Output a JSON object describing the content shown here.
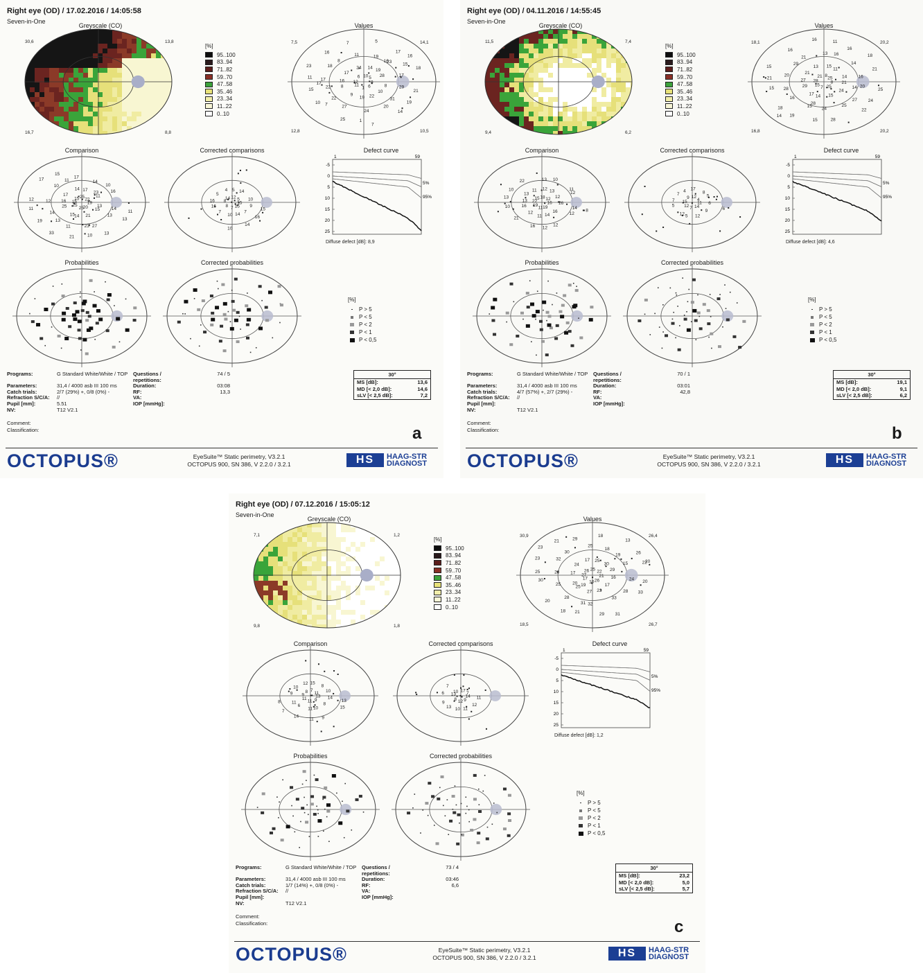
{
  "panels": [
    {
      "id": "a",
      "header": "Right eye (OD) / 17.02.2016 / 14:05:58",
      "mode": "Seven-in-One",
      "greyscale_label": "Greyscale (CO)",
      "greyscale_corners": [
        "30,6",
        "13,8",
        "16,7",
        "8,8"
      ],
      "values_label": "Values",
      "values_corners": [
        "7,5",
        "14,1",
        "12,8",
        "10,5"
      ],
      "values_points": [
        "8",
        "6",
        "1",
        "11",
        "12",
        "6",
        "10",
        "5",
        "8",
        "10",
        "22",
        "19",
        "9",
        "8",
        "16",
        "17",
        "24",
        "14",
        "19",
        "28",
        "29",
        "31",
        "20",
        "24",
        "27",
        "22",
        "22",
        "17",
        "18",
        "8",
        "11",
        "19",
        "23",
        "17",
        "21",
        "19",
        "14",
        "7",
        "1",
        "25",
        "10",
        "15",
        "11",
        "23",
        "16",
        "7",
        "5",
        "17",
        "16",
        "18",
        "7",
        "17",
        "15",
        "16"
      ],
      "comparison_label": "Comparison",
      "comparison_points": [
        "19",
        "20",
        "25",
        "25",
        "15",
        "15",
        "25",
        "22",
        "13",
        "15",
        "21",
        "14",
        "15",
        "25",
        "16",
        "17",
        "14",
        "17",
        "23",
        "11",
        "14",
        "13",
        "27",
        "23",
        "11",
        "13",
        "14",
        "12",
        "10",
        "11",
        "17",
        "14",
        "10",
        "16",
        "11",
        "13",
        "13",
        "10",
        "21",
        "33",
        "19",
        "11",
        "12",
        "17",
        "15"
      ],
      "corrected_comparisons_label": "Corrected comparisons",
      "corrected_comparisons_points": [
        "15",
        "15",
        "7",
        "8",
        "8",
        "14",
        "12",
        "5",
        "9",
        "7",
        "14",
        "10",
        "7",
        "16",
        "16",
        "5",
        "4",
        "5",
        "14",
        "10",
        "15",
        "16",
        "14",
        "10"
      ],
      "defect_curve_label": "Defect curve",
      "defect_curve_caption": "Diffuse defect [dB]: 8,9",
      "probabilities_label": "Probabilities",
      "corrected_probabilities_label": "Corrected probabilities",
      "params_left": [
        [
          "Programs:",
          "G Standard   White/White / TOP"
        ],
        [
          "Parameters:",
          "31,4  / 4000 asb III 100 ms"
        ],
        [
          "Catch trials:",
          "2/7 (29%) +, 0/8 (0%) -"
        ],
        [
          "Refraction S/C/A:",
          "//"
        ],
        [
          "Pupil [mm]:",
          "5.51"
        ],
        [
          "NV:",
          "T12 V2.1"
        ]
      ],
      "params_right": [
        [
          "Questions / repetitions:",
          "74 / 5"
        ],
        [
          "Duration:",
          "03:08"
        ],
        [
          "RF:",
          "13,3"
        ],
        [
          "VA:",
          ""
        ],
        [
          "IOP [mmHg]:",
          ""
        ]
      ],
      "stats": {
        "title": "30°",
        "ms": "13,6",
        "md": "14,6",
        "slv": "7,2"
      },
      "letter": "a",
      "greyscale_colors": [
        "#151515",
        "#3a2020",
        "#6b2420",
        "#8b3a28",
        "#3aa43a",
        "#e6e07a",
        "#f0eca2",
        "#f8f6d2",
        "#ffffff"
      ]
    },
    {
      "id": "b",
      "header": "Right eye (OD) / 04.11.2016 / 14:55:45",
      "mode": "Seven-in-One",
      "greyscale_label": "Greyscale (CO)",
      "greyscale_corners": [
        "11,5",
        "7,4",
        "9,4",
        "6,2"
      ],
      "values_label": "Values",
      "values_corners": [
        "18,1",
        "20,2",
        "16,8",
        "20,2"
      ],
      "values_points": [
        "8",
        "25",
        "7",
        "15",
        "28",
        "21",
        "8",
        "25",
        "21",
        "24",
        "15",
        "14",
        "17",
        "29",
        "27",
        "21",
        "13",
        "15",
        "11",
        "14",
        "20",
        "27",
        "25",
        "24",
        "15",
        "16",
        "28",
        "20",
        "29",
        "21",
        "13",
        "16",
        "14",
        "16",
        "25",
        "24",
        "22",
        "28",
        "15",
        "19",
        "18",
        "15",
        "21",
        "15",
        "16",
        "16",
        "11",
        "16",
        "18",
        "21",
        "14",
        "14",
        "28"
      ],
      "comparison_label": "Comparison",
      "comparison_points": [
        "16",
        "19",
        "11",
        "19",
        "22",
        "15",
        "18",
        "12",
        "16",
        "16",
        "14",
        "11",
        "12",
        "16",
        "13",
        "13",
        "11",
        "12",
        "13",
        "12",
        "14",
        "12",
        "12",
        "12",
        "16",
        "21",
        "10",
        "13",
        "10",
        "22",
        "13",
        "10",
        "11",
        "12",
        "8"
      ],
      "corrected_comparisons_label": "Corrected comparisons",
      "corrected_comparisons_points": [
        "11",
        "14",
        "7",
        "12",
        "15",
        "9",
        "12",
        "4",
        "6",
        "9",
        "12",
        "5",
        "12",
        "5",
        "7",
        "7",
        "4",
        "17",
        "8",
        "5",
        "6"
      ],
      "defect_curve_label": "Defect curve",
      "defect_curve_caption": "Diffuse defect [dB]: 4,6",
      "probabilities_label": "Probabilities",
      "corrected_probabilities_label": "Corrected probabilities",
      "params_left": [
        [
          "Programs:",
          "G Standard   White/White / TOP"
        ],
        [
          "Parameters:",
          "31,4  / 4000 asb III 100 ms"
        ],
        [
          "Catch trials:",
          "4/7 (57%) +, 2/7 (29%) -"
        ],
        [
          "Refraction S/C/A:",
          "//"
        ],
        [
          "Pupil [mm]:",
          ""
        ],
        [
          "NV:",
          "T12 V2.1"
        ]
      ],
      "params_right": [
        [
          "Questions / repetitions:",
          "70 / 1"
        ],
        [
          "Duration:",
          "03:01"
        ],
        [
          "RF:",
          "42,8"
        ],
        [
          "VA:",
          ""
        ],
        [
          "IOP [mmHg]:",
          ""
        ]
      ],
      "stats": {
        "title": "30°",
        "ms": "19,1",
        "md": "9,1",
        "slv": "6,2"
      },
      "letter": "b",
      "greyscale_colors": [
        "#151515",
        "#3a2020",
        "#6b2420",
        "#8b3a28",
        "#3aa43a",
        "#e6e07a",
        "#f0eca2",
        "#f8f6d2",
        "#ffffff"
      ]
    },
    {
      "id": "c",
      "header": "Right eye (OD) / 07.12.2016 / 15:05:12",
      "mode": "Seven-in-One",
      "greyscale_label": "Greyscale (CO)",
      "greyscale_corners": [
        "7,1",
        "1,2",
        "9,8",
        "1,8"
      ],
      "values_label": "Values",
      "values_corners": [
        "30,9",
        "26,4",
        "18,5",
        "26,7"
      ],
      "values_points": [
        "21",
        "26",
        "10",
        "17",
        "27",
        "26",
        "25",
        "22",
        "16",
        "17",
        "23",
        "27",
        "25",
        "20",
        "17",
        "24",
        "17",
        "25",
        "30",
        "29",
        "24",
        "28",
        "33",
        "32",
        "31",
        "28",
        "25",
        "28",
        "32",
        "30",
        "25",
        "18",
        "19",
        "15",
        "20",
        "33",
        "31",
        "29",
        "21",
        "18",
        "20",
        "30",
        "25",
        "23",
        "21",
        "29",
        "18",
        "13",
        "26",
        "20",
        "23",
        "19",
        "22"
      ],
      "comparison_label": "Comparison",
      "comparison_points": [
        "13",
        "9",
        "11",
        "11",
        "9",
        "8",
        "7",
        "11",
        "14",
        "8",
        "10",
        "11",
        "6",
        "11",
        "9",
        "10",
        "12",
        "15",
        "8",
        "10",
        "13",
        "15",
        "9",
        "11",
        "14",
        "7",
        "8"
      ],
      "corrected_comparisons_label": "Corrected comparisons",
      "corrected_comparisons_points": [
        "14",
        "9",
        "12",
        "8",
        "13",
        "10",
        "17",
        "7",
        "11",
        "12",
        "11",
        "10",
        "13",
        "9",
        "6",
        "7"
      ],
      "defect_curve_label": "Defect curve",
      "defect_curve_caption": "Diffuse defect [dB]: 1,2",
      "probabilities_label": "Probabilities",
      "corrected_probabilities_label": "Corrected probabilities",
      "params_left": [
        [
          "Programs:",
          "G Standard   White/White / TOP"
        ],
        [
          "Parameters:",
          "31,4  / 4000 asb III 100 ms"
        ],
        [
          "Catch trials:",
          "1/7 (14%) +, 0/8 (0%) -"
        ],
        [
          "Refraction S/C/A:",
          "//"
        ],
        [
          "Pupil [mm]:",
          ""
        ],
        [
          "NV:",
          "T12 V2.1"
        ]
      ],
      "params_right": [
        [
          "Questions / repetitions:",
          "73 / 4"
        ],
        [
          "Duration:",
          "03:46"
        ],
        [
          "RF:",
          "6,6"
        ],
        [
          "VA:",
          ""
        ],
        [
          "IOP [mmHg]:",
          ""
        ]
      ],
      "stats": {
        "title": "30°",
        "ms": "23,2",
        "md": "5,0",
        "slv": "5,7"
      },
      "letter": "c",
      "greyscale_colors": [
        "#151515",
        "#3a2020",
        "#6b2420",
        "#8b3a28",
        "#3aa43a",
        "#e6e07a",
        "#f0eca2",
        "#f8f6d2",
        "#ffffff"
      ]
    }
  ],
  "greyscale_legend": {
    "unit": "[%]",
    "items": [
      "95..100",
      "83..94",
      "71..82",
      "59..70",
      "47..58",
      "35..46",
      "23..34",
      "11..22",
      "0..10"
    ],
    "colors": [
      "#0e0e0e",
      "#2a1a1c",
      "#5c1e1c",
      "#8a2f26",
      "#3ca23c",
      "#e8e27a",
      "#f2eeaa",
      "#f8f6d6",
      "#ffffff"
    ]
  },
  "probability_legend": {
    "unit": "[%]",
    "items": [
      "P > 5",
      "P < 5",
      "P < 2",
      "P < 1",
      "P < 0,5"
    ]
  },
  "stats_labels": {
    "ms": "MS [dB]:",
    "md": "MD [< 2,0 dB]:",
    "slv": "sLV [< 2,5 dB]:"
  },
  "comment_labels": [
    "Comment:",
    "Classification:"
  ],
  "footer": {
    "logo": "OCTOPUS®",
    "software": "EyeSuite™ Static perimetry, V3.2.1",
    "device": "OCTOPUS 900, SN 386, V 2.2.0  / 3.2.1",
    "hs_mark": "HS",
    "hs_text_1": "HAAG-STR",
    "hs_text_2": "DIAGNOST"
  },
  "defect_axis": {
    "y_ticks": [
      "-5",
      "0",
      "5",
      "10",
      "15",
      "20",
      "25"
    ],
    "x_start": "1",
    "x_end": "59",
    "pct_labels": [
      "5%",
      "95%"
    ]
  }
}
